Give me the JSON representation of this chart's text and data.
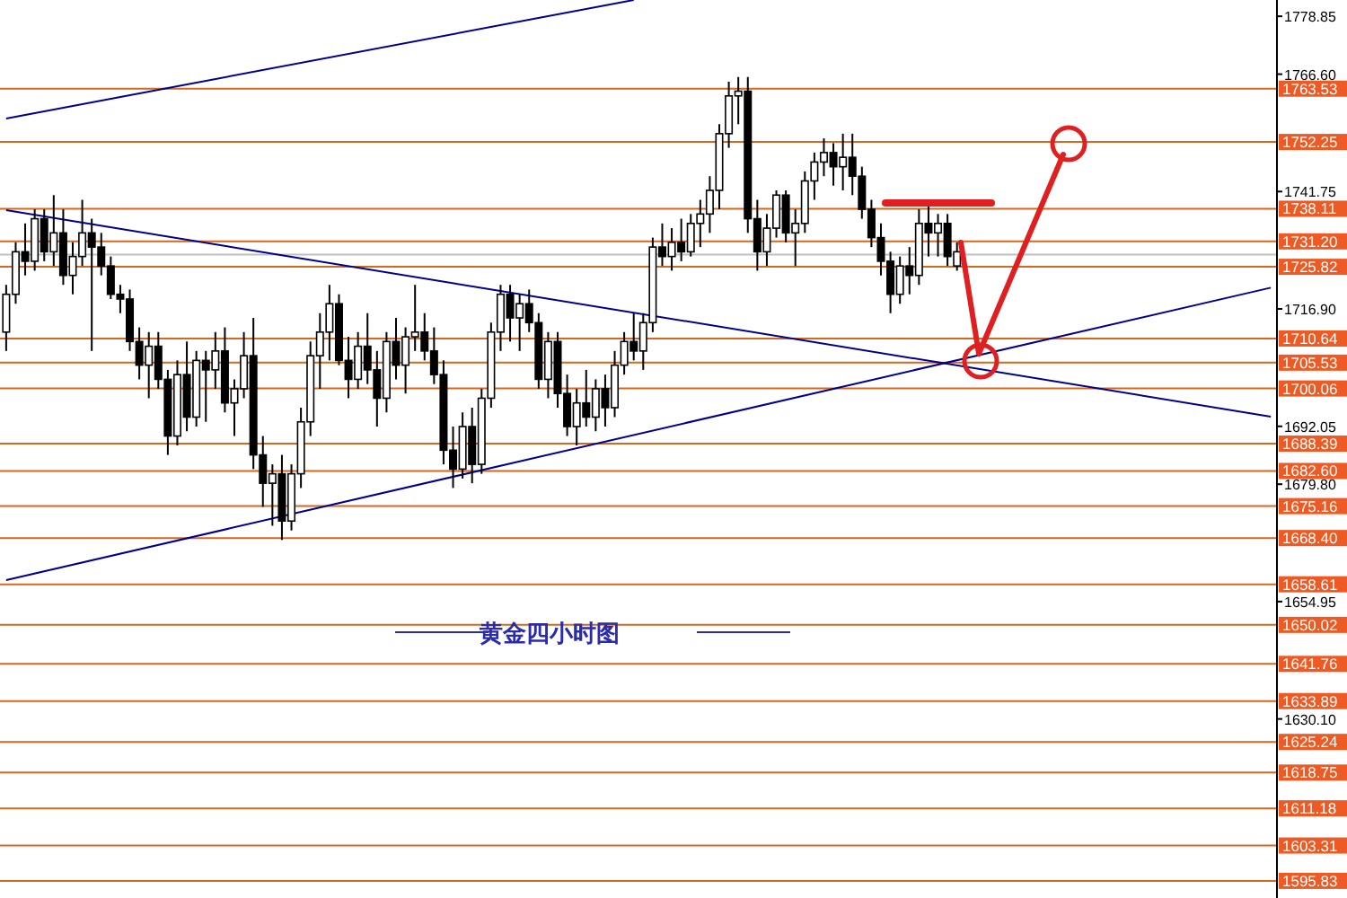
{
  "chart_data": {
    "type": "candlestick",
    "title": "黄金四小时图",
    "categories": [
      null,
      null,
      null,
      null,
      null,
      null,
      null,
      null,
      null,
      null,
      null,
      null,
      null,
      null,
      null,
      null,
      null,
      null,
      null,
      null,
      null,
      null,
      null,
      null,
      null,
      null,
      null,
      null,
      null,
      null,
      null,
      null,
      null,
      null,
      null,
      null,
      null,
      null,
      null,
      null,
      null,
      null,
      null,
      null,
      null,
      null,
      null,
      null,
      null,
      null,
      null,
      null,
      null,
      null,
      null,
      null,
      null,
      null,
      null,
      null,
      null,
      null,
      null,
      null,
      null,
      null,
      null,
      null,
      null,
      null,
      null,
      null,
      null,
      null,
      null,
      null,
      null,
      null,
      null,
      null,
      null,
      null,
      null,
      null,
      null,
      null,
      null,
      null,
      null,
      null,
      null,
      null,
      null,
      null,
      null,
      null,
      null,
      null,
      null,
      null,
      null,
      null,
      null,
      null,
      null,
      null,
      null,
      null,
      null,
      null,
      null,
      null,
      null,
      null,
      null,
      null,
      null,
      null,
      null,
      null,
      null,
      null,
      null,
      null,
      null,
      null,
      null,
      null,
      null,
      null,
      null,
      null,
      null,
      null
    ],
    "ohlc": [
      [
        1712,
        1722,
        1708,
        1720
      ],
      [
        1720,
        1731,
        1718,
        1729
      ],
      [
        1729,
        1735,
        1724,
        1727
      ],
      [
        1727,
        1738,
        1725,
        1736
      ],
      [
        1736,
        1738,
        1727,
        1729
      ],
      [
        1729,
        1741,
        1726,
        1733
      ],
      [
        1733,
        1738,
        1722,
        1724
      ],
      [
        1724,
        1731,
        1720,
        1728
      ],
      [
        1728,
        1740,
        1726,
        1733
      ],
      [
        1733,
        1736,
        1708,
        1730
      ],
      [
        1730,
        1733,
        1724,
        1726
      ],
      [
        1726,
        1728,
        1719,
        1720
      ],
      [
        1720,
        1722,
        1716,
        1719
      ],
      [
        1719,
        1721,
        1708,
        1710
      ],
      [
        1710,
        1713,
        1702,
        1705
      ],
      [
        1705,
        1712,
        1698,
        1709
      ],
      [
        1709,
        1712,
        1700,
        1702
      ],
      [
        1702,
        1704,
        1686,
        1690
      ],
      [
        1690,
        1706,
        1688,
        1703
      ],
      [
        1703,
        1710,
        1691,
        1694
      ],
      [
        1694,
        1708,
        1692,
        1706
      ],
      [
        1706,
        1708,
        1693,
        1704
      ],
      [
        1704,
        1712,
        1700,
        1708
      ],
      [
        1708,
        1713,
        1695,
        1697
      ],
      [
        1697,
        1702,
        1690,
        1700
      ],
      [
        1700,
        1712,
        1698,
        1707
      ],
      [
        1707,
        1715,
        1683,
        1686
      ],
      [
        1686,
        1690,
        1675,
        1680
      ],
      [
        1680,
        1684,
        1671,
        1682
      ],
      [
        1682,
        1686,
        1668,
        1672
      ],
      [
        1672,
        1684,
        1670,
        1682
      ],
      [
        1682,
        1696,
        1679,
        1693
      ],
      [
        1693,
        1710,
        1690,
        1707
      ],
      [
        1707,
        1716,
        1700,
        1712
      ],
      [
        1712,
        1722,
        1706,
        1718
      ],
      [
        1718,
        1720,
        1705,
        1706
      ],
      [
        1706,
        1711,
        1698,
        1702
      ],
      [
        1702,
        1712,
        1700,
        1709
      ],
      [
        1709,
        1716,
        1701,
        1704
      ],
      [
        1704,
        1708,
        1692,
        1698
      ],
      [
        1698,
        1712,
        1695,
        1710
      ],
      [
        1710,
        1715,
        1702,
        1705
      ],
      [
        1705,
        1713,
        1699,
        1711
      ],
      [
        1711,
        1722,
        1708,
        1712
      ],
      [
        1712,
        1716,
        1706,
        1708
      ],
      [
        1708,
        1713,
        1701,
        1703
      ],
      [
        1703,
        1706,
        1684,
        1687
      ],
      [
        1687,
        1692,
        1679,
        1683
      ],
      [
        1683,
        1695,
        1681,
        1692
      ],
      [
        1692,
        1696,
        1680,
        1684
      ],
      [
        1684,
        1700,
        1682,
        1698
      ],
      [
        1698,
        1714,
        1696,
        1712
      ],
      [
        1712,
        1722,
        1708,
        1720
      ],
      [
        1720,
        1722,
        1710,
        1715
      ],
      [
        1715,
        1720,
        1708,
        1718
      ],
      [
        1718,
        1721,
        1712,
        1714
      ],
      [
        1714,
        1716,
        1700,
        1702
      ],
      [
        1702,
        1712,
        1698,
        1710
      ],
      [
        1710,
        1712,
        1696,
        1699
      ],
      [
        1699,
        1703,
        1690,
        1692
      ],
      [
        1692,
        1700,
        1688,
        1697
      ],
      [
        1697,
        1704,
        1692,
        1694
      ],
      [
        1694,
        1702,
        1691,
        1700
      ],
      [
        1700,
        1703,
        1692,
        1696
      ],
      [
        1696,
        1708,
        1694,
        1705
      ],
      [
        1705,
        1712,
        1703,
        1710
      ],
      [
        1710,
        1716,
        1706,
        1708
      ],
      [
        1708,
        1716,
        1704,
        1714
      ],
      [
        1714,
        1732,
        1712,
        1730
      ],
      [
        1730,
        1735,
        1726,
        1728
      ],
      [
        1728,
        1734,
        1725,
        1731
      ],
      [
        1731,
        1736,
        1727,
        1729
      ],
      [
        1729,
        1737,
        1728,
        1735
      ],
      [
        1735,
        1740,
        1730,
        1737
      ],
      [
        1737,
        1745,
        1733,
        1742
      ],
      [
        1742,
        1756,
        1738,
        1754
      ],
      [
        1754,
        1765,
        1751,
        1762
      ],
      [
        1762,
        1766,
        1756,
        1763
      ],
      [
        1763,
        1766,
        1733,
        1736
      ],
      [
        1736,
        1740,
        1725,
        1729
      ],
      [
        1729,
        1737,
        1726,
        1734
      ],
      [
        1734,
        1742,
        1732,
        1741
      ],
      [
        1741,
        1742,
        1731,
        1733
      ],
      [
        1733,
        1738,
        1726,
        1735
      ],
      [
        1735,
        1746,
        1733,
        1744
      ],
      [
        1744,
        1750,
        1740,
        1748
      ],
      [
        1748,
        1753,
        1745,
        1750
      ],
      [
        1750,
        1752,
        1743,
        1747
      ],
      [
        1747,
        1754,
        1742,
        1749
      ],
      [
        1749,
        1754,
        1741,
        1745
      ],
      [
        1745,
        1747,
        1736,
        1738
      ],
      [
        1738,
        1740,
        1730,
        1732
      ],
      [
        1732,
        1735,
        1724,
        1727
      ],
      [
        1727,
        1729,
        1716,
        1720
      ],
      [
        1720,
        1728,
        1718,
        1726
      ],
      [
        1726,
        1730,
        1720,
        1724
      ],
      [
        1724,
        1738,
        1722,
        1735
      ],
      [
        1735,
        1739,
        1728,
        1733
      ],
      [
        1733,
        1737,
        1728,
        1735
      ],
      [
        1735,
        1737,
        1726,
        1728
      ],
      [
        1726,
        1731,
        1725,
        1729
      ],
      null,
      null,
      null,
      null,
      null,
      null,
      null,
      null,
      null,
      null,
      null,
      null,
      null,
      null,
      null,
      null,
      null,
      null,
      null,
      null,
      null,
      null,
      null,
      null,
      null,
      null,
      null,
      null,
      null,
      null,
      null,
      null,
      null
    ],
    "series": [
      {
        "type": "line",
        "color": "#00008b",
        "values": [
          1757.2,
          null,
          null,
          null,
          null,
          null,
          null,
          null,
          null,
          null,
          null,
          null,
          null,
          null,
          null,
          null,
          null,
          null,
          null,
          null,
          null,
          null,
          null,
          null,
          null,
          null,
          null,
          null,
          null,
          null,
          null,
          null,
          null,
          null,
          null,
          null,
          null,
          null,
          null,
          null,
          null,
          null,
          null,
          null,
          null,
          null,
          null,
          null,
          null,
          null,
          null,
          null,
          null,
          null,
          null,
          null,
          null,
          null,
          null,
          null,
          null,
          null,
          null,
          null,
          null,
          null,
          1782.3,
          null,
          null,
          null,
          null,
          null,
          null,
          null,
          null,
          null,
          null,
          null,
          null,
          null,
          null,
          null,
          null,
          null,
          null,
          null,
          null,
          null,
          null,
          null,
          null,
          null,
          null,
          null,
          null,
          null,
          null,
          null,
          null,
          null,
          null,
          null,
          null,
          null,
          null,
          null,
          null,
          null,
          null,
          null,
          null,
          null,
          null,
          null,
          null,
          null,
          null,
          null,
          null,
          null,
          null,
          null,
          null,
          null,
          null,
          null,
          null,
          null,
          null,
          null,
          null,
          null,
          null,
          null
        ]
      },
      {
        "type": "line",
        "color": "#00008b",
        "values": [
          1737.8,
          null,
          null,
          null,
          null,
          null,
          null,
          null,
          null,
          null,
          null,
          null,
          null,
          null,
          null,
          null,
          null,
          null,
          null,
          null,
          null,
          null,
          null,
          null,
          null,
          null,
          null,
          null,
          null,
          null,
          null,
          null,
          null,
          null,
          null,
          null,
          null,
          null,
          null,
          null,
          null,
          null,
          null,
          null,
          null,
          null,
          null,
          null,
          null,
          null,
          null,
          null,
          null,
          null,
          null,
          null,
          null,
          null,
          null,
          null,
          null,
          null,
          null,
          null,
          null,
          null,
          null,
          null,
          null,
          null,
          null,
          null,
          null,
          null,
          null,
          null,
          null,
          null,
          null,
          null,
          null,
          null,
          null,
          null,
          null,
          null,
          null,
          null,
          null,
          null,
          null,
          null,
          null,
          null,
          null,
          null,
          null,
          null,
          null,
          null,
          null,
          null,
          null,
          null,
          null,
          null,
          null,
          null,
          null,
          null,
          null,
          null,
          null,
          null,
          null,
          null,
          null,
          null,
          null,
          null,
          null,
          null,
          null,
          null,
          null,
          null,
          null,
          null,
          null,
          null,
          null,
          null,
          null,
          1694.1
        ]
      },
      {
        "type": "line",
        "color": "#00008b",
        "values": [
          1659.5,
          null,
          null,
          null,
          null,
          null,
          null,
          null,
          null,
          null,
          null,
          null,
          null,
          null,
          null,
          null,
          null,
          null,
          null,
          null,
          null,
          null,
          null,
          null,
          null,
          null,
          null,
          null,
          null,
          null,
          null,
          null,
          null,
          null,
          null,
          null,
          null,
          null,
          null,
          null,
          null,
          null,
          null,
          null,
          null,
          null,
          null,
          null,
          null,
          null,
          null,
          null,
          null,
          null,
          null,
          null,
          null,
          null,
          null,
          null,
          null,
          null,
          null,
          null,
          null,
          null,
          null,
          null,
          null,
          null,
          null,
          null,
          null,
          null,
          null,
          null,
          null,
          null,
          null,
          null,
          null,
          null,
          null,
          null,
          null,
          null,
          null,
          null,
          null,
          null,
          null,
          null,
          null,
          null,
          null,
          null,
          null,
          null,
          null,
          null,
          null,
          null,
          null,
          null,
          null,
          null,
          null,
          null,
          null,
          null,
          null,
          null,
          null,
          null,
          null,
          null,
          null,
          null,
          null,
          null,
          null,
          null,
          null,
          null,
          null,
          null,
          null,
          null,
          null,
          null,
          null,
          null,
          null,
          1721.4
        ]
      }
    ],
    "ylim": [
      1592.2,
      1782.3
    ],
    "yticks": [
      {
        "value": 1778.85,
        "label": "1778.85"
      },
      {
        "value": 1766.6,
        "label": "1766.60"
      },
      {
        "value": 1741.75,
        "label": "1741.75"
      },
      {
        "value": 1716.9,
        "label": "1716.90"
      },
      {
        "value": 1692.05,
        "label": "1692.05"
      },
      {
        "value": 1679.8,
        "label": "1679.80"
      },
      {
        "value": 1654.95,
        "label": "1654.95"
      },
      {
        "value": 1630.1,
        "label": "1630.10"
      }
    ],
    "tick_labels": "y",
    "ref_lines": [
      {
        "axis": "y",
        "value": 1763.53,
        "label": "1763.53",
        "color": "#d2691e"
      },
      {
        "axis": "y",
        "value": 1752.25,
        "label": "1752.25",
        "color": "#d2691e"
      },
      {
        "axis": "y",
        "value": 1738.11,
        "label": "1738.11",
        "color": "#d2691e"
      },
      {
        "axis": "y",
        "value": 1731.2,
        "label": "1731.20",
        "color": "#d2691e"
      },
      {
        "axis": "y",
        "value": 1728.4,
        "label": null,
        "color": "#c0c0c0"
      },
      {
        "axis": "y",
        "value": 1725.82,
        "label": "1725.82",
        "color": "#d2691e"
      },
      {
        "axis": "y",
        "value": 1710.64,
        "label": "1710.64",
        "color": "#d2691e"
      },
      {
        "axis": "y",
        "value": 1705.53,
        "label": "1705.53",
        "color": "#d2691e"
      },
      {
        "axis": "y",
        "value": 1700.06,
        "label": "1700.06",
        "color": "#d2691e"
      },
      {
        "axis": "y",
        "value": 1688.39,
        "label": "1688.39",
        "color": "#d2691e"
      },
      {
        "axis": "y",
        "value": 1682.6,
        "label": "1682.60",
        "color": "#d2691e"
      },
      {
        "axis": "y",
        "value": 1675.16,
        "label": "1675.16",
        "color": "#d2691e"
      },
      {
        "axis": "y",
        "value": 1668.4,
        "label": "1668.40",
        "color": "#d2691e"
      },
      {
        "axis": "y",
        "value": 1658.61,
        "label": "1658.61",
        "color": "#d2691e"
      },
      {
        "axis": "y",
        "value": 1650.02,
        "label": "1650.02",
        "color": "#d2691e"
      },
      {
        "axis": "y",
        "value": 1641.76,
        "label": "1641.76",
        "color": "#d2691e"
      },
      {
        "axis": "y",
        "value": 1633.89,
        "label": "1633.89",
        "color": "#d2691e"
      },
      {
        "axis": "y",
        "value": 1625.24,
        "label": "1625.24",
        "color": "#d2691e"
      },
      {
        "axis": "y",
        "value": 1618.75,
        "label": "1618.75",
        "color": "#d2691e"
      },
      {
        "axis": "y",
        "value": 1611.18,
        "label": "1611.18",
        "color": "#d2691e"
      },
      {
        "axis": "y",
        "value": 1603.31,
        "label": "1603.31",
        "color": "#d2691e"
      },
      {
        "axis": "y",
        "value": 1595.83,
        "label": "1595.83",
        "color": "#d2691e"
      }
    ]
  }
}
